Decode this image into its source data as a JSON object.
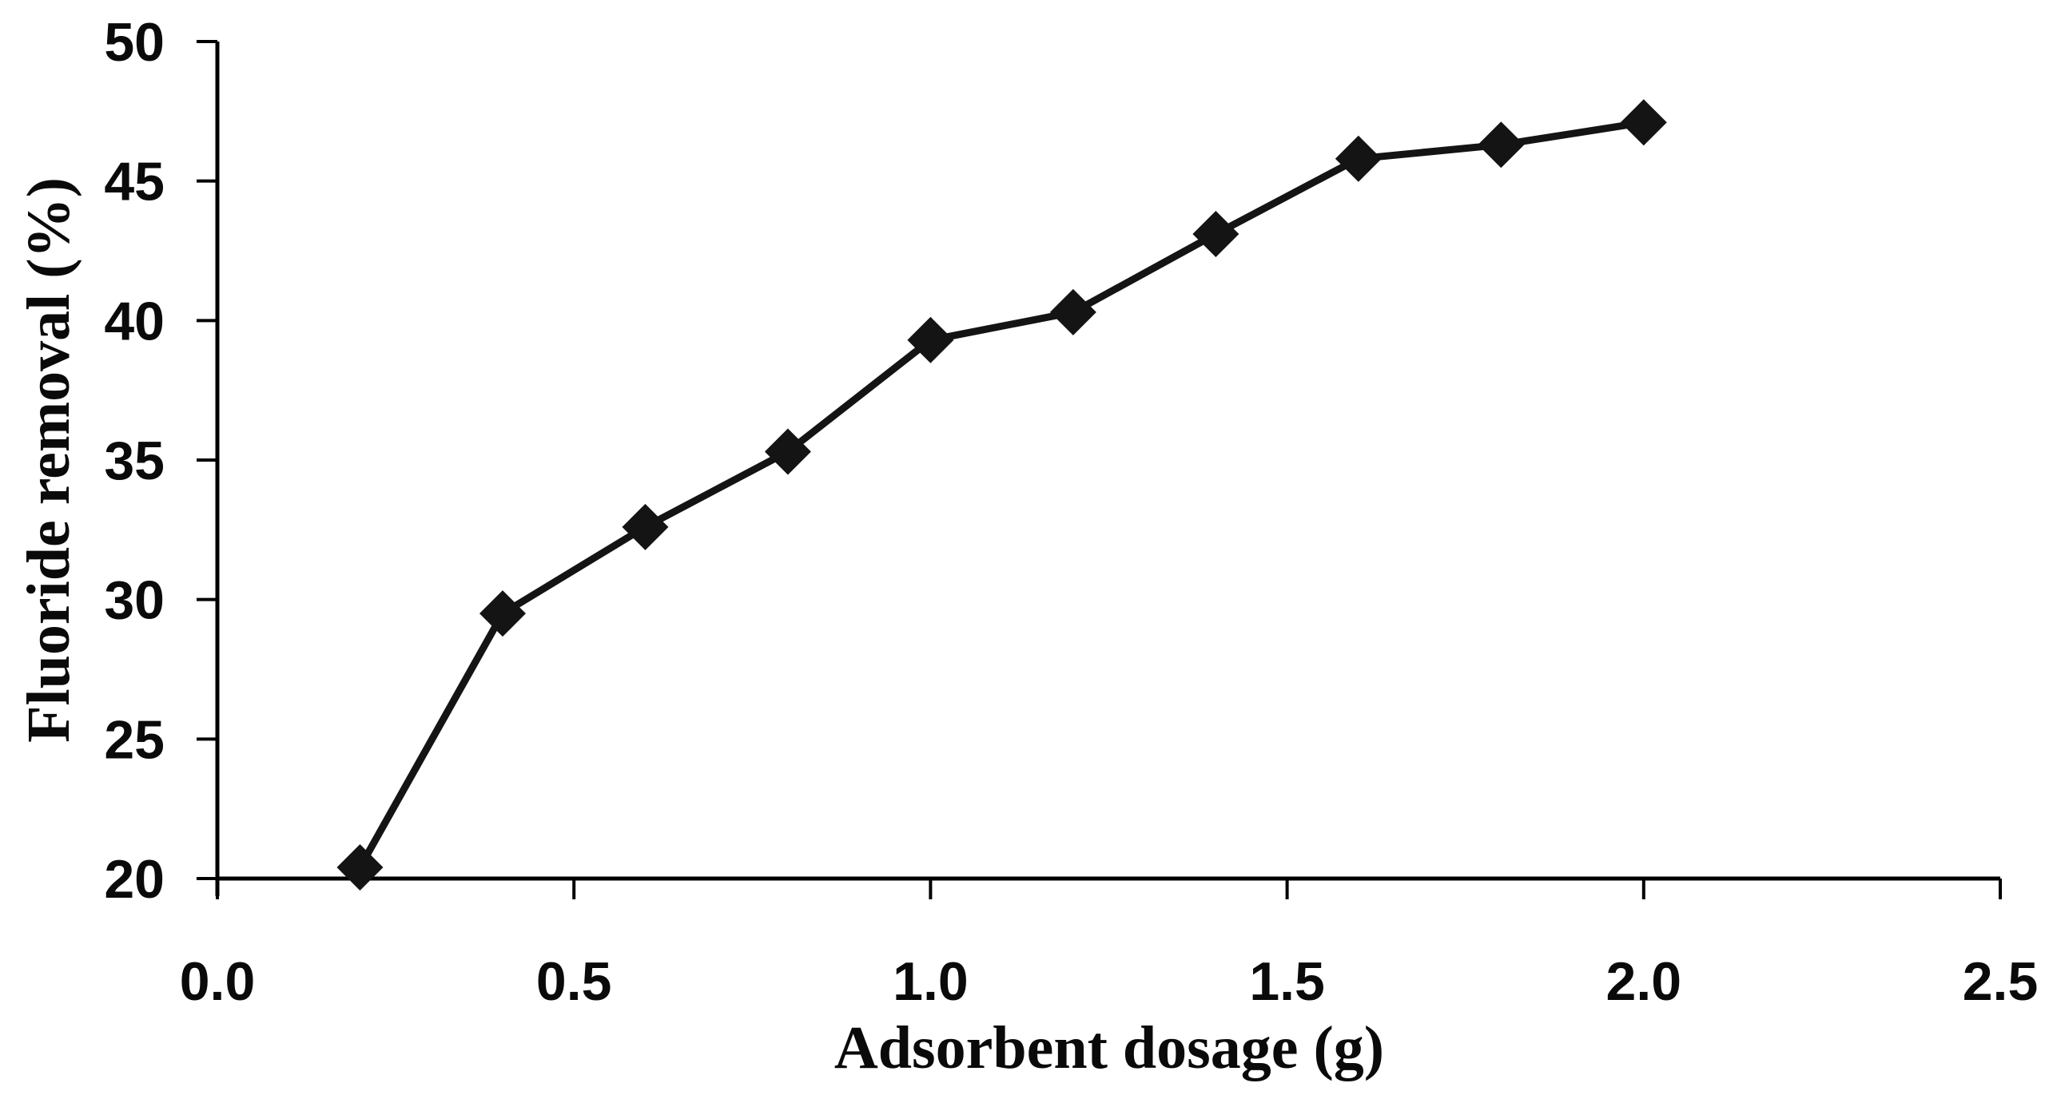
{
  "figure": {
    "background": "#ffffff"
  },
  "chart_data": {
    "type": "line",
    "title": "",
    "xlabel": "Adsorbent dosage (g)",
    "ylabel": "Fluoride removal (%)",
    "x": [
      0.2,
      0.4,
      0.6,
      0.8,
      1.0,
      1.2,
      1.4,
      1.6,
      1.8,
      2.0
    ],
    "series": [
      {
        "name": "Fluoride removal (%)",
        "values": [
          20.4,
          29.5,
          32.6,
          35.3,
          39.3,
          40.3,
          43.1,
          45.8,
          46.3,
          47.1
        ]
      }
    ],
    "xlim": [
      0.0,
      2.5
    ],
    "ylim": [
      20,
      50
    ],
    "x_ticks": [
      0.0,
      0.5,
      1.0,
      1.5,
      2.0,
      2.5
    ],
    "x_tick_labels": [
      "0.0",
      "0.5",
      "1.0",
      "1.5",
      "2.0",
      "2.5"
    ],
    "y_ticks": [
      20,
      25,
      30,
      35,
      40,
      45,
      50
    ],
    "y_tick_labels": [
      "20",
      "25",
      "30",
      "35",
      "40",
      "45",
      "50"
    ],
    "grid": false,
    "legend": "none",
    "marker": "diamond",
    "colors": {
      "line": "#141414",
      "marker": "#141414",
      "axis": "#000000",
      "text": "#0a0a0a",
      "background": "#ffffff"
    }
  }
}
